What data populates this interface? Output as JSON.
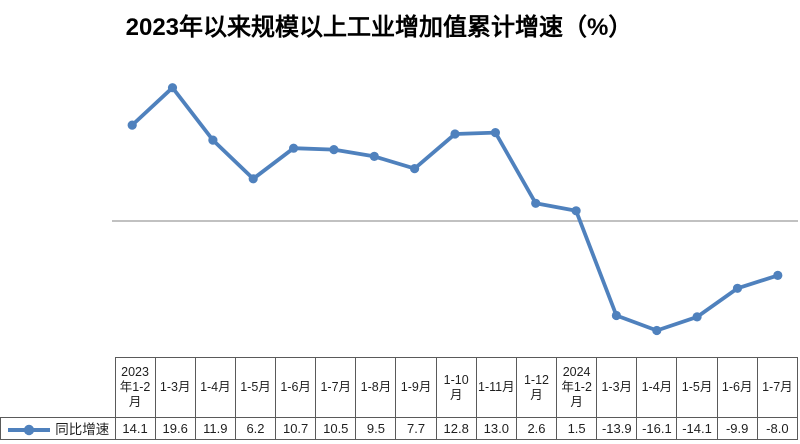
{
  "chart_data": {
    "type": "line",
    "title": "2023年以来规模以上工业增加值累计增速（%）",
    "categories": [
      "2023年1-2月",
      "1-3月",
      "1-4月",
      "1-5月",
      "1-6月",
      "1-7月",
      "1-8月",
      "1-9月",
      "1-10月",
      "1-11月",
      "1-12月",
      "2024年1-2月",
      "1-3月",
      "1-4月",
      "1-5月",
      "1-6月",
      "1-7月"
    ],
    "series": [
      {
        "name": "同比增速",
        "values": [
          14.1,
          19.6,
          11.9,
          6.2,
          10.7,
          10.5,
          9.5,
          7.7,
          12.8,
          13.0,
          2.6,
          1.5,
          -13.9,
          -16.1,
          -14.1,
          -9.9,
          -8.0
        ]
      }
    ],
    "ylim": [
      -19.5,
      23.5
    ],
    "zero_line": true,
    "grid": false,
    "y_axis_labels": false,
    "legend_position": "data-table-left",
    "marker": "circle",
    "value_decimals": 1
  },
  "legend": {
    "label": "同比增速",
    "icon": "line-with-circle-marker-icon"
  },
  "colors": {
    "series_line": "#4F81BD",
    "zero_line": "#9C9C9C",
    "table_border": "#5A5A5A",
    "text": "#1F1F1F",
    "title_text": "#000000"
  }
}
